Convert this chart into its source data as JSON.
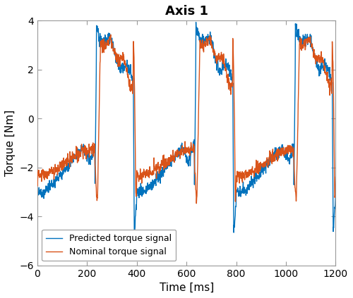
{
  "title": "Axis 1",
  "xlabel": "Time [ms]",
  "ylabel": "Torque [Nm]",
  "xlim": [
    0,
    1200
  ],
  "ylim": [
    -6,
    4
  ],
  "xticks": [
    0,
    200,
    400,
    600,
    800,
    1000,
    1200
  ],
  "yticks": [
    -6,
    -4,
    -2,
    0,
    2,
    4
  ],
  "blue_color": "#0072BD",
  "orange_color": "#D95319",
  "legend_labels": [
    "Predicted torque signal",
    "Nominal torque signal"
  ],
  "background_color": "#ffffff",
  "title_fontsize": 13,
  "axis_fontsize": 11,
  "tick_fontsize": 10,
  "legend_fontsize": 9,
  "line_width": 1.0
}
